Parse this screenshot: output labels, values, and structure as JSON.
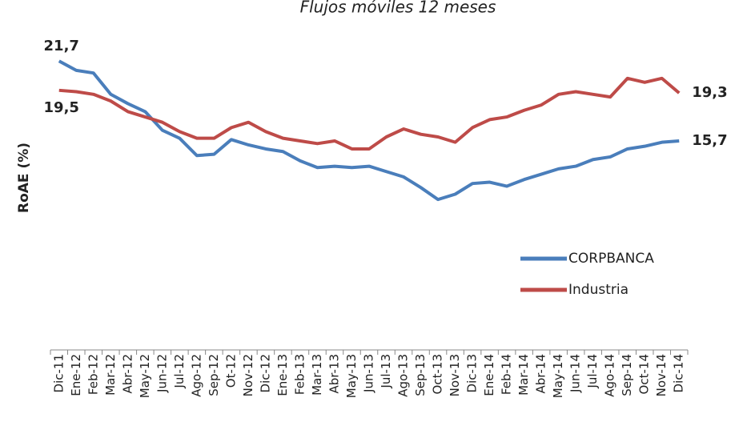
{
  "chart_data": {
    "type": "line",
    "title": "Flujos móviles 12 meses",
    "y_label": "RoAE (%)",
    "categories": [
      "Dic-11",
      "Ene-12",
      "Feb-12",
      "Mar-12",
      "Abr-12",
      "May-12",
      "Jun-12",
      "Jul-12",
      "Ago-12",
      "Sep-12",
      "Ot-12",
      "Nov-12",
      "Dic-12",
      "Ene-13",
      "Feb-13",
      "Mar-13",
      "Abr-13",
      "May-13",
      "Jun-13",
      "Jul-13",
      "Ago-13",
      "Sep-13",
      "Oct-13",
      "Nov-13",
      "Dic-13",
      "Ene-14",
      "Feb-14",
      "Mar-14",
      "Abr-14",
      "May-14",
      "Jun-14",
      "Jul-14",
      "Ago-14",
      "Sep-14",
      "Oct-14",
      "Nov-14",
      "Dic-14"
    ],
    "series": [
      {
        "name": "CORPBANCA",
        "color": "#4a7ebb",
        "label_color": "#0070c0",
        "values": [
          21.7,
          21.0,
          20.8,
          19.2,
          18.5,
          17.9,
          16.5,
          15.9,
          14.6,
          14.7,
          15.8,
          15.4,
          15.1,
          14.9,
          14.2,
          13.7,
          13.8,
          13.7,
          13.8,
          13.4,
          13.0,
          12.2,
          11.3,
          11.7,
          12.5,
          12.6,
          12.3,
          12.8,
          13.2,
          13.6,
          13.8,
          14.3,
          14.5,
          15.1,
          15.3,
          15.6,
          15.7
        ],
        "value_labels": [
          "21,7",
          null,
          null,
          null,
          null,
          null,
          null,
          null,
          null,
          null,
          null,
          null,
          null,
          null,
          null,
          null,
          null,
          null,
          null,
          null,
          null,
          null,
          null,
          null,
          null,
          null,
          null,
          null,
          null,
          null,
          null,
          null,
          null,
          null,
          null,
          null,
          "15,7"
        ]
      },
      {
        "name": "Industria",
        "color": "#be4b48",
        "label_color": "#c00000",
        "values": [
          19.5,
          19.4,
          19.2,
          18.7,
          17.9,
          17.5,
          17.1,
          16.4,
          15.9,
          15.9,
          16.7,
          17.1,
          16.4,
          15.9,
          15.7,
          15.5,
          15.7,
          15.1,
          15.1,
          16.0,
          16.6,
          16.2,
          16.0,
          15.6,
          16.7,
          17.3,
          17.5,
          18.0,
          18.4,
          19.2,
          19.4,
          19.2,
          19.0,
          20.4,
          20.1,
          20.4,
          19.3
        ],
        "value_labels": [
          "19,5",
          null,
          null,
          null,
          null,
          null,
          null,
          null,
          null,
          null,
          null,
          null,
          null,
          null,
          null,
          null,
          null,
          null,
          null,
          null,
          null,
          null,
          null,
          null,
          null,
          null,
          null,
          null,
          null,
          null,
          null,
          null,
          null,
          null,
          null,
          null,
          "19,3"
        ]
      }
    ],
    "ylim": [
      0,
      24
    ]
  }
}
